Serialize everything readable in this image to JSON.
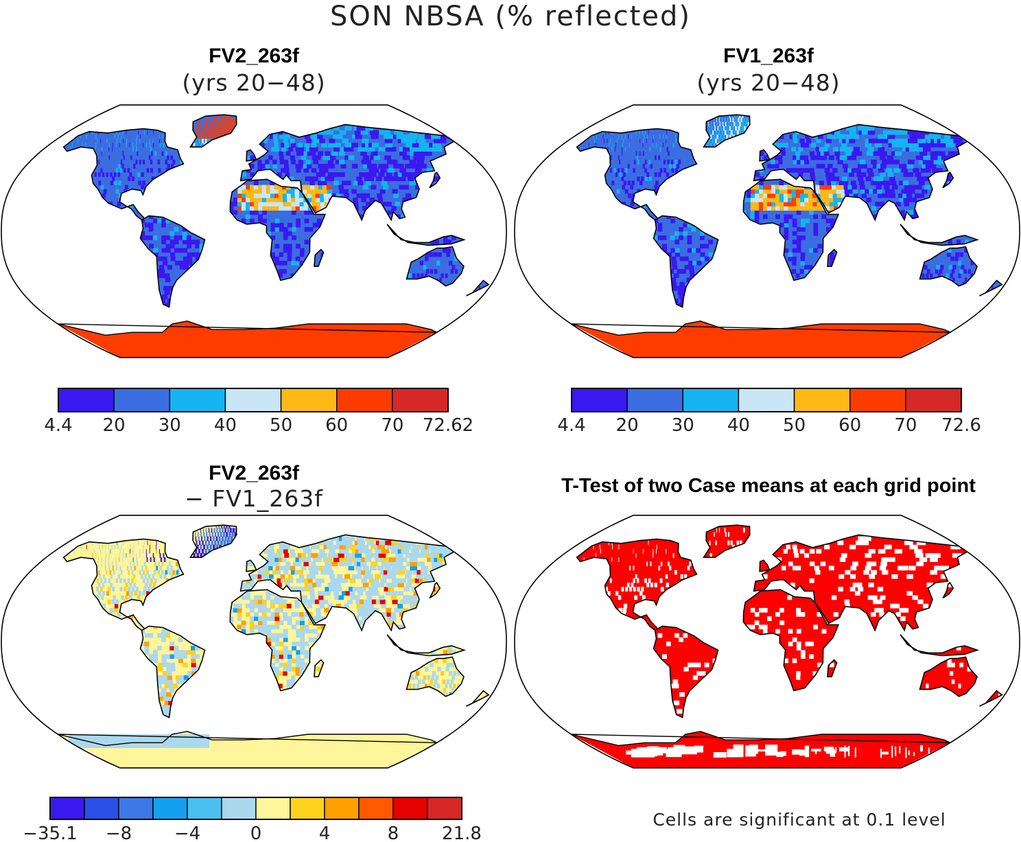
{
  "figure_title": "SON NBSA (% reflected)",
  "panels": {
    "top_left": {
      "title": "FV2_263f",
      "subtitle": "(yrs 20−48)",
      "colorbar": {
        "colors": [
          "#3b18f0",
          "#3a6ee0",
          "#14b4f0",
          "#c8e6f6",
          "#ffb814",
          "#ff3c00",
          "#d72828"
        ],
        "labels": [
          "4.4",
          "20",
          "30",
          "40",
          "50",
          "60",
          "70",
          "72.62"
        ]
      }
    },
    "top_right": {
      "title": "FV1_263f",
      "subtitle": "(yrs 20−48)",
      "colorbar": {
        "colors": [
          "#3b18f0",
          "#3a6ee0",
          "#14b4f0",
          "#c8e6f6",
          "#ffb814",
          "#ff3c00",
          "#d72828"
        ],
        "labels": [
          "4.4",
          "20",
          "30",
          "40",
          "50",
          "60",
          "70",
          "72.6"
        ]
      }
    },
    "bottom_left": {
      "title": "FV2_263f",
      "subtitle": "− FV1_263f",
      "colorbar": {
        "colors": [
          "#3b18f0",
          "#2850e6",
          "#3c78e6",
          "#14a0f0",
          "#4ac0f0",
          "#acd8ee",
          "#fff59a",
          "#ffd21e",
          "#ffa000",
          "#ff5a00",
          "#e60000",
          "#d72828"
        ],
        "labels": [
          "−35.1",
          "−8",
          "−4",
          "0",
          "4",
          "8",
          "21.8"
        ]
      }
    },
    "bottom_right": {
      "title": "T-Test of two Case means at each grid point",
      "note": "Cells are significant at 0.1 level",
      "color": "#ff0000"
    }
  }
}
